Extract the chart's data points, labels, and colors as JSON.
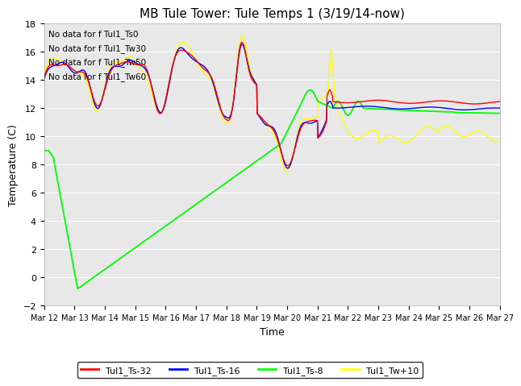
{
  "title": "MB Tule Tower: Tule Temps 1 (3/19/14-now)",
  "xlabel": "Time",
  "ylabel": "Temperature (C)",
  "ylim": [
    -2,
    18
  ],
  "background_color": "#e8e8e8",
  "no_data_texts": [
    "No data for f Tul1_Ts0",
    "No data for f Tul1_Tw30",
    "No data for f Tul1_Tw50",
    "No data for f Tul1_Tw60"
  ],
  "x_tick_labels": [
    "Mar 12",
    "Mar 13",
    "Mar 14",
    "Mar 15",
    "Mar 16",
    "Mar 17",
    "Mar 18",
    "Mar 19",
    "Mar 20",
    "Mar 21",
    "Mar 22",
    "Mar 23",
    "Mar 24",
    "Mar 25",
    "Mar 26",
    "Mar 27"
  ],
  "legend": [
    {
      "label": "Tul1_Ts-32",
      "color": "red"
    },
    {
      "label": "Tul1_Ts-16",
      "color": "blue"
    },
    {
      "label": "Tul1_Ts-8",
      "color": "#00ff00"
    },
    {
      "label": "Tul1_Tw+10",
      "color": "yellow"
    }
  ],
  "figsize": [
    6.4,
    4.8
  ],
  "dpi": 100
}
